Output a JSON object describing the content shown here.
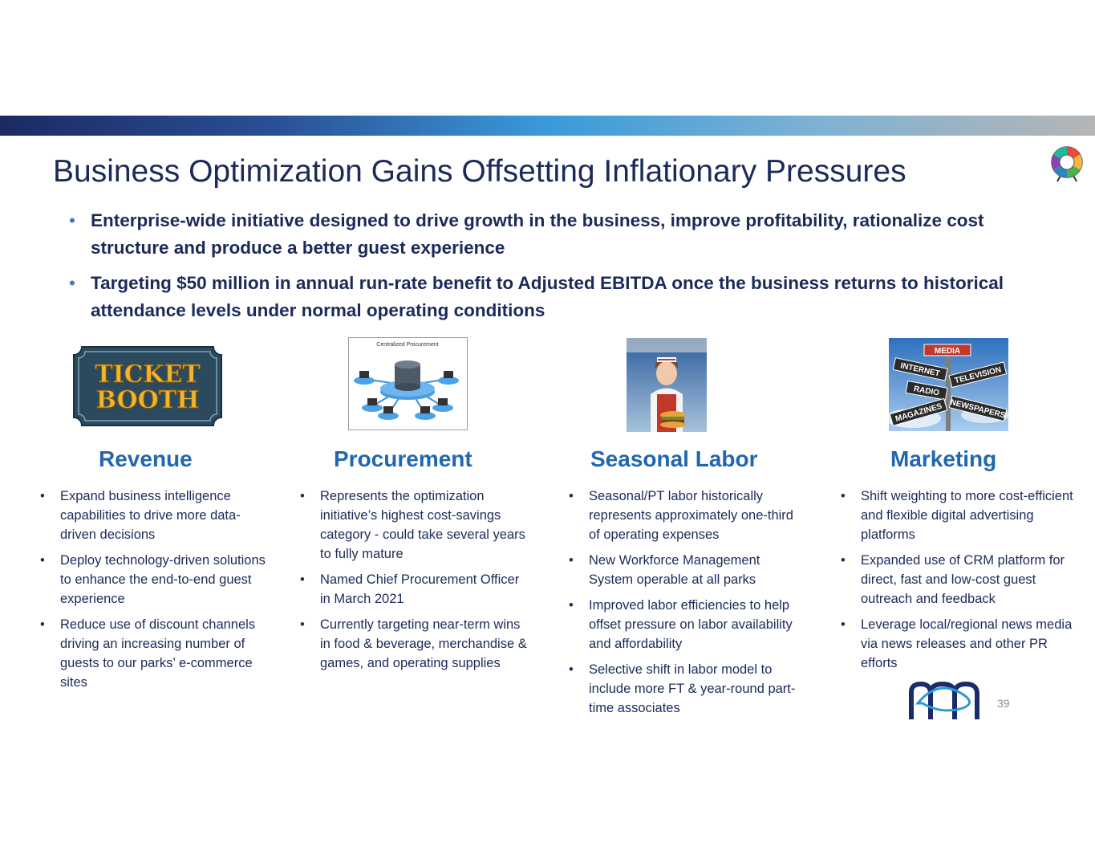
{
  "slide": {
    "title": "Business Optimization Gains Offsetting Inflationary Pressures",
    "page_number": "39",
    "intro_bullets": [
      "Enterprise-wide initiative designed to drive growth in the business, improve profitability, rationalize cost structure and produce a better guest experience",
      "Targeting $50 million in annual run-rate benefit to Adjusted EBITDA once the business returns to historical attendance levels under normal operating conditions"
    ]
  },
  "colors": {
    "title": "#1b2a59",
    "heading": "#2167b0",
    "accent": "#3a9ad9"
  },
  "columns": [
    {
      "heading": "Revenue",
      "image": {
        "icon": "ticket-booth-sign-icon",
        "line1": "TICKET",
        "line2": "BOOTH"
      },
      "bullets": [
        "Expand business intelligence capabilities to drive more data-driven decisions",
        "Deploy technology-driven solutions to enhance the end-to-end guest experience",
        "Reduce use of discount channels driving an increasing number of guests to our parks’ e-commerce sites"
      ]
    },
    {
      "heading": "Procurement",
      "image": {
        "icon": "centralized-procurement-diagram-icon",
        "caption": "Centralized Procurement"
      },
      "bullets": [
        "Represents the optimization initiative’s highest cost-savings category - could take several years to fully mature",
        "Named Chief Procurement Officer in March 2021",
        "Currently targeting near-term wins in food & beverage, merchandise & games, and operating supplies"
      ]
    },
    {
      "heading": "Seasonal Labor",
      "image": {
        "icon": "food-service-worker-photo-icon"
      },
      "bullets": [
        "Seasonal/PT labor historically represents approximately one-third of operating expenses",
        "New Workforce Management System operable at all parks",
        "Improved labor efficiencies to help offset pressure on labor availability and affordability",
        "Selective shift in labor model to include more FT & year-round part-time associates"
      ]
    },
    {
      "heading": "Marketing",
      "image": {
        "icon": "media-signpost-icon",
        "signs": [
          "MEDIA",
          "INTERNET",
          "TELEVISION",
          "RADIO",
          "MAGAZINES",
          "NEWSPAPERS"
        ]
      },
      "bullets": [
        "Shift weighting to more cost-efficient and flexible digital advertising platforms",
        "Expanded use of CRM platform for direct, fast and low-cost guest outreach and feedback",
        "Leverage local/regional news media via news releases and other PR efforts"
      ]
    }
  ]
}
